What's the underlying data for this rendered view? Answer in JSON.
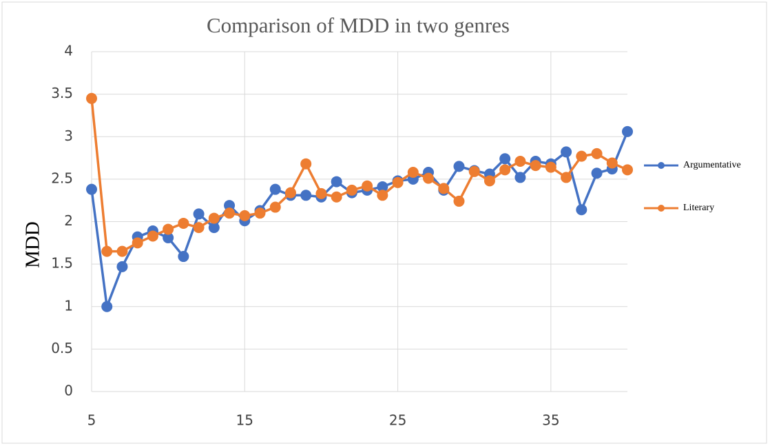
{
  "chart_data": {
    "type": "line",
    "title": "Comparison of MDD in two genres",
    "y_label": "MDD",
    "x": [
      5,
      6,
      7,
      8,
      9,
      10,
      11,
      12,
      13,
      14,
      15,
      16,
      17,
      18,
      19,
      20,
      21,
      22,
      23,
      24,
      25,
      26,
      27,
      28,
      29,
      30,
      31,
      32,
      33,
      34,
      35,
      36,
      37,
      38,
      39,
      40
    ],
    "series": [
      {
        "name": "Argumentative",
        "color": "#4472c4",
        "values": [
          2.38,
          1.0,
          1.47,
          1.82,
          1.89,
          1.81,
          1.59,
          2.09,
          1.93,
          2.19,
          2.01,
          2.13,
          2.38,
          2.31,
          2.31,
          2.29,
          2.47,
          2.34,
          2.37,
          2.41,
          2.48,
          2.5,
          2.58,
          2.37,
          2.65,
          2.6,
          2.56,
          2.74,
          2.52,
          2.71,
          2.68,
          2.82,
          2.14,
          2.57,
          2.62,
          3.06
        ]
      },
      {
        "name": "Literary",
        "color": "#ed7d31",
        "values": [
          3.45,
          1.65,
          1.65,
          1.75,
          1.83,
          1.91,
          1.98,
          1.93,
          2.04,
          2.1,
          2.07,
          2.1,
          2.17,
          2.34,
          2.68,
          2.33,
          2.29,
          2.37,
          2.42,
          2.31,
          2.46,
          2.58,
          2.51,
          2.39,
          2.24,
          2.59,
          2.48,
          2.61,
          2.71,
          2.66,
          2.64,
          2.52,
          2.77,
          2.8,
          2.69,
          2.61
        ]
      }
    ],
    "xlim": [
      5,
      40
    ],
    "xticks": [
      5,
      15,
      25,
      35
    ],
    "ylim": [
      0,
      4
    ],
    "yticks": [
      0,
      0.5,
      1,
      1.5,
      2,
      2.5,
      3,
      3.5,
      4
    ],
    "grid": true,
    "legend": "right"
  }
}
